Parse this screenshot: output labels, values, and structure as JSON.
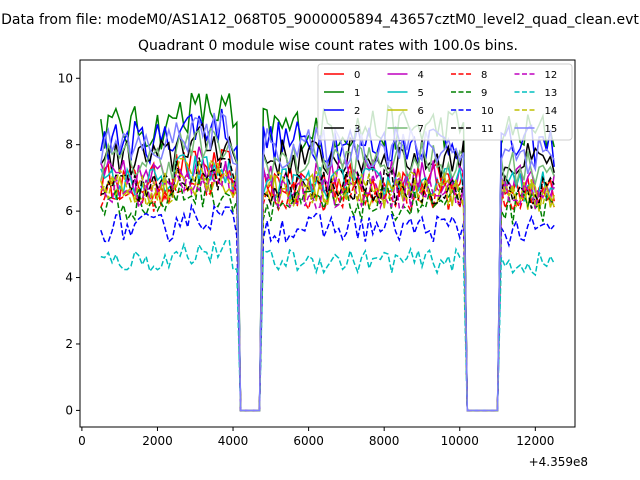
{
  "figure": {
    "suptitle": "Data from file: modeM0/AS1A12_068T05_9000005894_43657cztM0_level2_quad_clean.evt",
    "offset_text": "+4.359e8"
  },
  "chart_data": {
    "type": "line",
    "title": "Quadrant 0 module wise count rates with 100.0s bins.",
    "xlabel": "",
    "ylabel": "",
    "x_offset": 435900000,
    "xlim": [
      -50,
      13050
    ],
    "ylim": [
      -0.5,
      10.55
    ],
    "xticks": [
      0,
      2000,
      4000,
      6000,
      8000,
      10000,
      12000
    ],
    "yticks": [
      0,
      2,
      4,
      6,
      8,
      10
    ],
    "grid": false,
    "legend": {
      "placement": "top-right",
      "ncol": 4
    },
    "gaps": [
      [
        4150,
        4750
      ],
      [
        10150,
        11050
      ]
    ],
    "x_start": 500,
    "x_step": 100,
    "x_end": 12500,
    "series": [
      {
        "name": "0",
        "color": "#ff0000",
        "dash": "solid",
        "level": 6.9
      },
      {
        "name": "1",
        "color": "#008000",
        "dash": "solid",
        "level": 8.5
      },
      {
        "name": "2",
        "color": "#0000ff",
        "dash": "solid",
        "level": 8.1
      },
      {
        "name": "3",
        "color": "#000000",
        "dash": "solid",
        "level": 7.6
      },
      {
        "name": "4",
        "color": "#bf00bf",
        "dash": "solid",
        "level": 7.0
      },
      {
        "name": "5",
        "color": "#00bfbf",
        "dash": "solid",
        "level": 6.8
      },
      {
        "name": "6",
        "color": "#bfbf00",
        "dash": "solid",
        "level": 6.6
      },
      {
        "name": "7",
        "color": "#77bb77",
        "dash": "solid",
        "level": 7.5
      },
      {
        "name": "8",
        "color": "#ff0000",
        "dash": "dashed",
        "level": 6.5
      },
      {
        "name": "9",
        "color": "#008000",
        "dash": "dashed",
        "level": 6.2
      },
      {
        "name": "10",
        "color": "#0000ff",
        "dash": "dashed",
        "level": 5.5
      },
      {
        "name": "11",
        "color": "#000000",
        "dash": "dashed",
        "level": 6.7
      },
      {
        "name": "12",
        "color": "#bf00bf",
        "dash": "dashed",
        "level": 6.6
      },
      {
        "name": "13",
        "color": "#00bfbf",
        "dash": "dashed",
        "level": 4.5
      },
      {
        "name": "14",
        "color": "#bfbf00",
        "dash": "dashed",
        "level": 6.7
      },
      {
        "name": "15",
        "color": "#8080ff",
        "dash": "solid",
        "level": 7.9
      }
    ]
  }
}
